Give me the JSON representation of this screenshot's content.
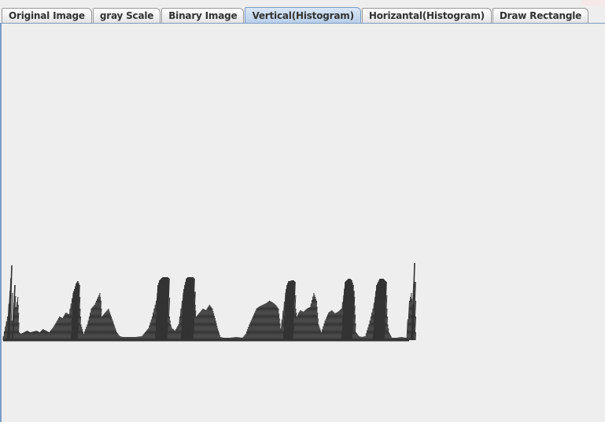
{
  "tabs": [
    {
      "label": "Original Image",
      "selected": false
    },
    {
      "label": "gray Scale",
      "selected": false
    },
    {
      "label": "Binary Image",
      "selected": false
    },
    {
      "label": "Vertical(Histogram)",
      "selected": true
    },
    {
      "label": "Horizantal(Histogram)",
      "selected": false
    },
    {
      "label": "Draw Rectangle",
      "selected": false
    }
  ],
  "colors": {
    "bar": "#333333",
    "selected_tab": "#b8cfe9",
    "panel_border": "#7a9cc8",
    "background": "#eeeeee"
  },
  "chart_data": {
    "type": "bar",
    "orientation": "vertical",
    "title": "",
    "xlabel": "",
    "ylabel": "",
    "ylim": [
      0,
      100
    ],
    "values": [
      [
        0,
        5
      ],
      [
        4,
        30
      ],
      [
        8,
        95
      ],
      [
        10,
        25
      ],
      [
        12,
        70
      ],
      [
        14,
        42
      ],
      [
        16,
        55
      ],
      [
        18,
        35
      ],
      [
        20,
        10
      ],
      [
        22,
        8
      ],
      [
        26,
        10
      ],
      [
        30,
        12
      ],
      [
        34,
        10
      ],
      [
        38,
        11
      ],
      [
        42,
        12
      ],
      [
        46,
        10
      ],
      [
        50,
        14
      ],
      [
        54,
        12
      ],
      [
        58,
        10
      ],
      [
        62,
        15
      ],
      [
        66,
        22
      ],
      [
        70,
        30
      ],
      [
        74,
        28
      ],
      [
        78,
        35
      ],
      [
        82,
        33
      ],
      [
        86,
        60
      ],
      [
        88,
        65
      ],
      [
        90,
        72
      ],
      [
        92,
        75
      ],
      [
        94,
        70
      ],
      [
        96,
        40
      ],
      [
        98,
        20
      ],
      [
        102,
        8
      ],
      [
        106,
        20
      ],
      [
        110,
        40
      ],
      [
        114,
        45
      ],
      [
        118,
        55
      ],
      [
        120,
        60
      ],
      [
        122,
        50
      ],
      [
        124,
        30
      ],
      [
        128,
        35
      ],
      [
        132,
        40
      ],
      [
        136,
        30
      ],
      [
        140,
        20
      ],
      [
        144,
        10
      ],
      [
        148,
        5
      ],
      [
        152,
        4
      ],
      [
        160,
        4
      ],
      [
        168,
        4
      ],
      [
        176,
        5
      ],
      [
        180,
        10
      ],
      [
        184,
        15
      ],
      [
        188,
        30
      ],
      [
        192,
        50
      ],
      [
        194,
        70
      ],
      [
        196,
        76
      ],
      [
        198,
        78
      ],
      [
        200,
        80
      ],
      [
        202,
        80
      ],
      [
        204,
        80
      ],
      [
        206,
        80
      ],
      [
        208,
        78
      ],
      [
        210,
        30
      ],
      [
        212,
        20
      ],
      [
        214,
        15
      ],
      [
        218,
        12
      ],
      [
        222,
        20
      ],
      [
        226,
        60
      ],
      [
        228,
        70
      ],
      [
        230,
        78
      ],
      [
        232,
        80
      ],
      [
        234,
        80
      ],
      [
        236,
        80
      ],
      [
        238,
        80
      ],
      [
        240,
        78
      ],
      [
        242,
        45
      ],
      [
        244,
        30
      ],
      [
        248,
        35
      ],
      [
        252,
        40
      ],
      [
        256,
        38
      ],
      [
        260,
        45
      ],
      [
        264,
        40
      ],
      [
        268,
        28
      ],
      [
        272,
        15
      ],
      [
        276,
        4
      ],
      [
        280,
        3
      ],
      [
        288,
        3
      ],
      [
        296,
        4
      ],
      [
        304,
        3
      ],
      [
        308,
        8
      ],
      [
        312,
        20
      ],
      [
        316,
        30
      ],
      [
        320,
        40
      ],
      [
        324,
        43
      ],
      [
        328,
        45
      ],
      [
        332,
        47
      ],
      [
        336,
        50
      ],
      [
        340,
        48
      ],
      [
        344,
        45
      ],
      [
        348,
        40
      ],
      [
        352,
        15
      ],
      [
        356,
        60
      ],
      [
        358,
        70
      ],
      [
        360,
        75
      ],
      [
        362,
        75
      ],
      [
        364,
        76
      ],
      [
        366,
        76
      ],
      [
        368,
        74
      ],
      [
        370,
        40
      ],
      [
        372,
        30
      ],
      [
        374,
        35
      ],
      [
        376,
        38
      ],
      [
        380,
        36
      ],
      [
        384,
        40
      ],
      [
        388,
        42
      ],
      [
        392,
        60
      ],
      [
        396,
        50
      ],
      [
        400,
        20
      ],
      [
        404,
        10
      ],
      [
        408,
        25
      ],
      [
        412,
        35
      ],
      [
        416,
        38
      ],
      [
        420,
        34
      ],
      [
        424,
        36
      ],
      [
        428,
        40
      ],
      [
        432,
        74
      ],
      [
        434,
        76
      ],
      [
        436,
        78
      ],
      [
        438,
        78
      ],
      [
        440,
        76
      ],
      [
        442,
        70
      ],
      [
        444,
        55
      ],
      [
        448,
        10
      ],
      [
        452,
        5
      ],
      [
        456,
        4
      ],
      [
        460,
        5
      ],
      [
        464,
        20
      ],
      [
        468,
        40
      ],
      [
        472,
        70
      ],
      [
        474,
        74
      ],
      [
        476,
        78
      ],
      [
        478,
        78
      ],
      [
        480,
        78
      ],
      [
        482,
        76
      ],
      [
        484,
        74
      ],
      [
        486,
        40
      ],
      [
        488,
        20
      ],
      [
        490,
        10
      ],
      [
        494,
        3
      ],
      [
        500,
        3
      ],
      [
        506,
        4
      ],
      [
        512,
        3
      ],
      [
        514,
        50
      ],
      [
        516,
        60
      ],
      [
        518,
        45
      ],
      [
        520,
        98
      ],
      [
        522,
        50
      ],
      [
        524,
        10
      ]
    ]
  }
}
